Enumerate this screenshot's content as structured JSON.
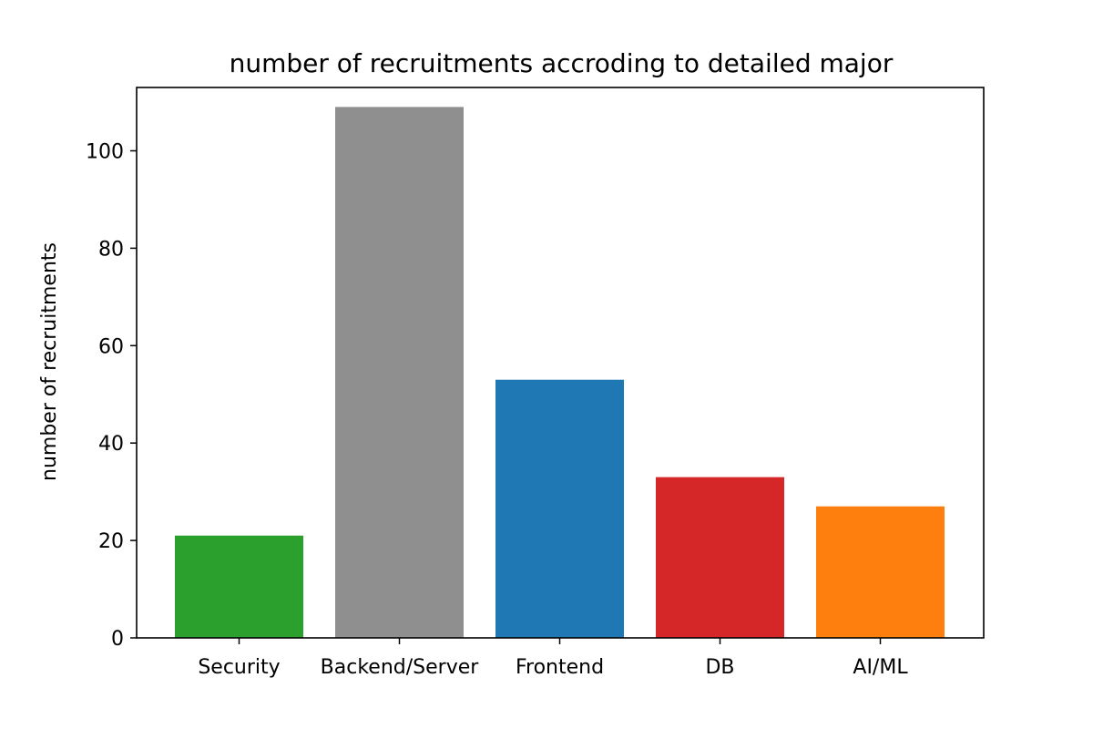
{
  "chart_data": {
    "type": "bar",
    "title": "number of recruitments accroding to detailed major",
    "xlabel": "",
    "ylabel": "number of recruitments",
    "categories": [
      "Security",
      "Backend/Server",
      "Frontend",
      "DB",
      "AI/ML"
    ],
    "values": [
      21,
      109,
      53,
      33,
      27
    ],
    "colors": [
      "#2ca02c",
      "#8f8f8f",
      "#1f77b4",
      "#d62728",
      "#ff7f0e"
    ],
    "ylim": [
      0,
      113
    ],
    "yticks": [
      0,
      20,
      40,
      60,
      80,
      100
    ],
    "grid": false,
    "legend": "none"
  }
}
